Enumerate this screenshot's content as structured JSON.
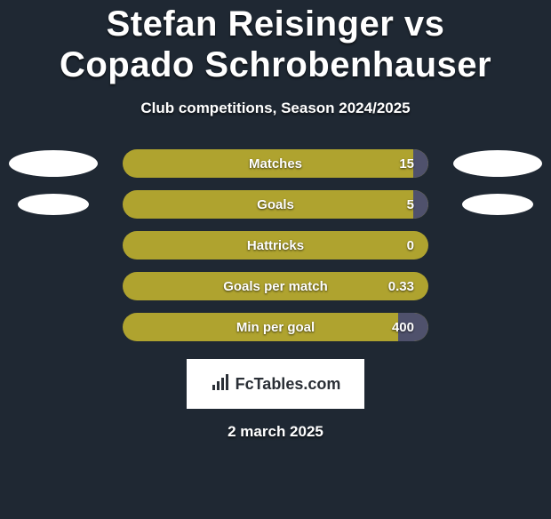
{
  "title": "Stefan Reisinger vs Copado Schrobenhauser",
  "title_fontsize": 40,
  "subtitle": "Club competitions, Season 2024/2025",
  "subtitle_fontsize": 17,
  "date": "2 march 2025",
  "date_fontsize": 17,
  "colors": {
    "background": "#1f2833",
    "bar_base": "#afa32f",
    "bar_fill": "#4f516c",
    "oval": "#ffffff",
    "title_text": "#ffffff",
    "bar_text": "#ffffff",
    "logo_bg": "#ffffff",
    "logo_text": "#2a2f36"
  },
  "rows": [
    {
      "label": "Matches",
      "value": "15",
      "fill_pct": 5,
      "show_left_oval": true,
      "show_right_oval": true,
      "oval_small": false
    },
    {
      "label": "Goals",
      "value": "5",
      "fill_pct": 5,
      "show_left_oval": true,
      "show_right_oval": true,
      "oval_small": true
    },
    {
      "label": "Hattricks",
      "value": "0",
      "fill_pct": 0,
      "show_left_oval": false,
      "show_right_oval": false,
      "oval_small": false
    },
    {
      "label": "Goals per match",
      "value": "0.33",
      "fill_pct": 0,
      "show_left_oval": false,
      "show_right_oval": false,
      "oval_small": false
    },
    {
      "label": "Min per goal",
      "value": "400",
      "fill_pct": 10,
      "show_left_oval": false,
      "show_right_oval": false,
      "oval_small": false
    }
  ],
  "bar_label_fontsize": 15,
  "bar_value_fontsize": 15,
  "logo": {
    "text": "FcTables.com",
    "icon_name": "bar-chart-icon"
  }
}
